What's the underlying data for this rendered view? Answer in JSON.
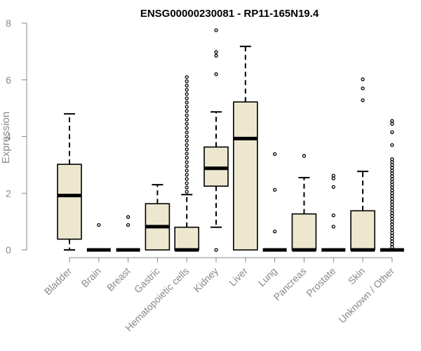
{
  "chart_data": {
    "type": "boxplot",
    "title": "ENSG00000230081 - RP11-165N19.4",
    "ylabel": "Expression",
    "xlabel": "",
    "ylim": [
      0,
      8
    ],
    "yticks": [
      0,
      2,
      4,
      6,
      8
    ],
    "grid": false,
    "colors": {
      "box_fill": "#ede7cf",
      "stroke": "#000000",
      "axis": "#888888"
    },
    "categories": [
      "Bladder",
      "Brain",
      "Breast",
      "Gastric",
      "Hematopoietic cells",
      "Kidney",
      "Liver",
      "Lung",
      "Pancreas",
      "Prostate",
      "Skin",
      "Unknown / Other"
    ],
    "boxes": [
      {
        "category": "Bladder",
        "whisker_low": 0.0,
        "q1": 0.38,
        "median": 1.92,
        "q3": 3.02,
        "whisker_high": 4.8,
        "outliers": []
      },
      {
        "category": "Brain",
        "whisker_low": 0.0,
        "q1": 0.0,
        "median": 0.0,
        "q3": 0.0,
        "whisker_high": 0.0,
        "outliers": [
          0.88
        ]
      },
      {
        "category": "Breast",
        "whisker_low": 0.0,
        "q1": 0.0,
        "median": 0.0,
        "q3": 0.0,
        "whisker_high": 0.0,
        "outliers": [
          0.88,
          1.16
        ]
      },
      {
        "category": "Gastric",
        "whisker_low": 0.0,
        "q1": 0.0,
        "median": 0.82,
        "q3": 1.63,
        "whisker_high": 2.3,
        "outliers": []
      },
      {
        "category": "Hematopoietic cells",
        "whisker_low": 0.0,
        "q1": 0.0,
        "median": 0.0,
        "q3": 0.8,
        "whisker_high": 1.95,
        "outliers": [
          2.05,
          2.2,
          2.35,
          2.5,
          2.65,
          2.8,
          2.95,
          3.1,
          3.25,
          3.4,
          3.55,
          3.7,
          3.85,
          4.0,
          4.15,
          4.3,
          4.45,
          4.6,
          4.75,
          4.9,
          5.05,
          5.2,
          5.35,
          5.5,
          5.65,
          5.8,
          5.95,
          6.1
        ]
      },
      {
        "category": "Kidney",
        "whisker_low": 0.8,
        "q1": 2.25,
        "median": 2.88,
        "q3": 3.63,
        "whisker_high": 4.87,
        "outliers": [
          0.0,
          6.2,
          6.85,
          6.98,
          7.75
        ]
      },
      {
        "category": "Liver",
        "whisker_low": 0.0,
        "q1": 0.0,
        "median": 3.93,
        "q3": 5.22,
        "whisker_high": 7.18,
        "outliers": []
      },
      {
        "category": "Lung",
        "whisker_low": 0.0,
        "q1": 0.0,
        "median": 0.0,
        "q3": 0.0,
        "whisker_high": 0.0,
        "outliers": [
          0.65,
          2.12,
          3.38
        ]
      },
      {
        "category": "Pancreas",
        "whisker_low": 0.0,
        "q1": 0.0,
        "median": 0.0,
        "q3": 1.27,
        "whisker_high": 2.55,
        "outliers": [
          3.32
        ]
      },
      {
        "category": "Prostate",
        "whisker_low": 0.0,
        "q1": 0.0,
        "median": 0.0,
        "q3": 0.0,
        "whisker_high": 0.0,
        "outliers": [
          0.82,
          1.22,
          2.22,
          2.52,
          2.62
        ]
      },
      {
        "category": "Skin",
        "whisker_low": 0.0,
        "q1": 0.0,
        "median": 0.0,
        "q3": 1.38,
        "whisker_high": 2.77,
        "outliers": [
          5.28,
          5.7,
          6.02
        ]
      },
      {
        "category": "Unknown / Other",
        "whisker_low": 0.0,
        "q1": 0.0,
        "median": 0.0,
        "q3": 0.0,
        "whisker_high": 0.0,
        "outliers": [
          0.1,
          0.2,
          0.3,
          0.4,
          0.5,
          0.6,
          0.7,
          0.8,
          0.9,
          1.0,
          1.1,
          1.2,
          1.3,
          1.4,
          1.5,
          1.6,
          1.7,
          1.8,
          1.9,
          2.0,
          2.1,
          2.2,
          2.3,
          2.4,
          2.5,
          2.6,
          2.7,
          2.8,
          2.9,
          3.0,
          3.1,
          3.2,
          3.7,
          4.15,
          4.45,
          4.55
        ]
      }
    ]
  }
}
